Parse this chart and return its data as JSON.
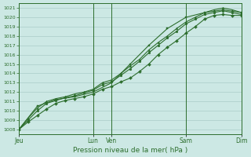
{
  "title": "",
  "xlabel": "Pression niveau de la mer( hPa )",
  "bg_color": "#cce8e4",
  "grid_color": "#aaccc8",
  "line_color": "#2d6e2d",
  "ylim": [
    1007.5,
    1021.5
  ],
  "yticks": [
    1008,
    1009,
    1010,
    1011,
    1012,
    1013,
    1014,
    1015,
    1016,
    1017,
    1018,
    1019,
    1020,
    1021
  ],
  "xtick_labels": [
    "Jeu",
    "Lun",
    "Ven",
    "Sam",
    "Dim"
  ],
  "xtick_positions": [
    0,
    24,
    30,
    54,
    72
  ],
  "x_total": 72,
  "vline_positions": [
    0,
    24,
    30,
    54,
    72
  ],
  "lines": [
    {
      "x": [
        0,
        3,
        6,
        9,
        12,
        15,
        18,
        21,
        24,
        27,
        30,
        33,
        36,
        39,
        42,
        45,
        48,
        51,
        54,
        57,
        60,
        63,
        66,
        69,
        72
      ],
      "y": [
        1008.0,
        1008.8,
        1009.5,
        1010.2,
        1010.8,
        1011.1,
        1011.3,
        1011.5,
        1011.8,
        1012.3,
        1012.6,
        1013.1,
        1013.5,
        1014.2,
        1015.0,
        1016.0,
        1016.8,
        1017.5,
        1018.3,
        1019.0,
        1019.8,
        1020.2,
        1020.3,
        1020.2,
        1020.2
      ]
    },
    {
      "x": [
        0,
        3,
        6,
        9,
        12,
        15,
        18,
        21,
        24,
        27,
        30,
        33,
        36,
        39,
        42,
        45,
        48,
        51,
        54,
        57,
        60,
        63,
        66,
        69,
        72
      ],
      "y": [
        1008.0,
        1009.2,
        1010.3,
        1011.0,
        1011.3,
        1011.5,
        1011.8,
        1012.0,
        1012.3,
        1013.0,
        1013.3,
        1014.0,
        1014.8,
        1015.5,
        1016.5,
        1017.3,
        1018.0,
        1018.8,
        1019.5,
        1020.0,
        1020.5,
        1020.8,
        1021.0,
        1020.8,
        1020.5
      ]
    },
    {
      "x": [
        0,
        3,
        6,
        9,
        12,
        15,
        18,
        21,
        24,
        27,
        30,
        33,
        36,
        39,
        42,
        45,
        48,
        51,
        54,
        57,
        60,
        63,
        66,
        69,
        72
      ],
      "y": [
        1008.0,
        1009.0,
        1010.0,
        1010.8,
        1011.1,
        1011.4,
        1011.6,
        1011.9,
        1012.2,
        1012.8,
        1013.1,
        1013.8,
        1014.5,
        1015.3,
        1016.2,
        1017.0,
        1017.8,
        1018.5,
        1019.3,
        1019.8,
        1020.3,
        1020.5,
        1020.7,
        1020.5,
        1020.3
      ]
    },
    {
      "x": [
        0,
        6,
        12,
        18,
        24,
        30,
        36,
        42,
        48,
        54,
        60,
        66,
        72
      ],
      "y": [
        1008.0,
        1010.5,
        1011.2,
        1011.5,
        1012.0,
        1013.0,
        1015.0,
        1017.0,
        1018.8,
        1020.0,
        1020.5,
        1020.8,
        1020.5
      ]
    }
  ],
  "marker_styles": [
    "D",
    "^",
    "o",
    "s"
  ],
  "marker_size": 2.0,
  "linewidth": 0.8
}
